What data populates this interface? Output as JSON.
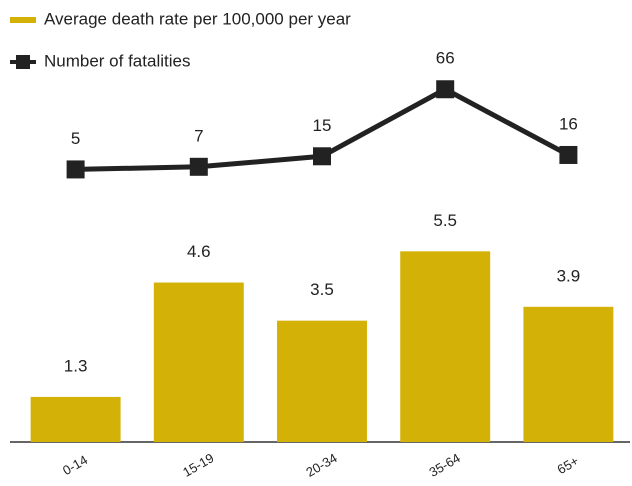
{
  "chart_data": {
    "type": "bar",
    "categories": [
      "0-14",
      "15-19",
      "20-34",
      "35-64",
      "65+"
    ],
    "series": [
      {
        "name": "Average death rate per 100,000 per year",
        "color": "#d4b106",
        "type": "bar",
        "values": [
          1.3,
          4.6,
          3.5,
          5.5,
          3.9
        ]
      },
      {
        "name": "Number of fatalities",
        "color": "#222222",
        "type": "line",
        "axis": "y2",
        "values": [
          5,
          7,
          15,
          66,
          16
        ]
      }
    ],
    "ylim": [
      0,
      6
    ],
    "y2lim": [
      0,
      70
    ],
    "legend": "top-left"
  }
}
